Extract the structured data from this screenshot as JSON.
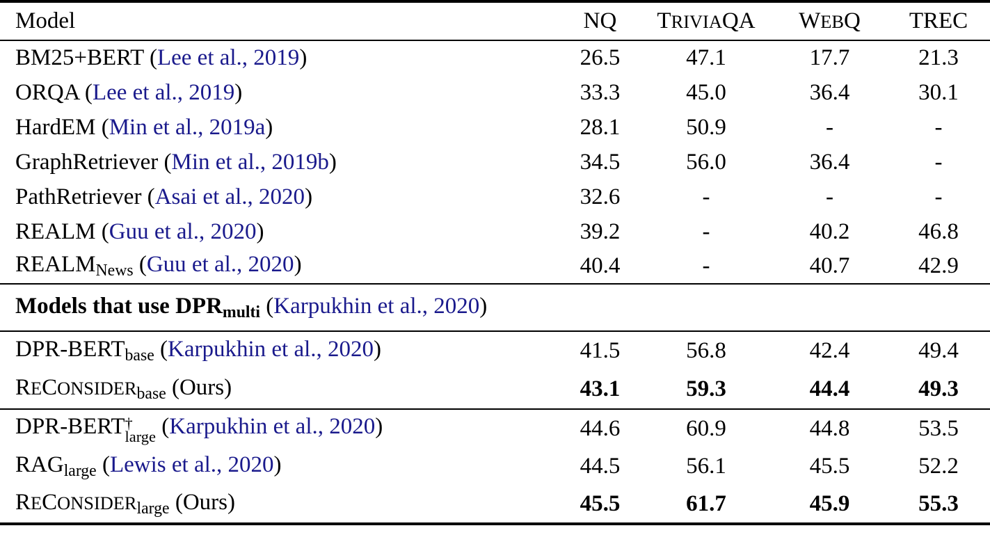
{
  "styles": {
    "citation_color": "#1a1a8c",
    "rule_color": "#000000",
    "text_color": "#000000",
    "background": "#ffffff"
  },
  "table": {
    "header": {
      "model_label": "Model",
      "metrics": [
        {
          "segments": [
            {
              "text": "NQ",
              "style": "plain"
            }
          ]
        },
        {
          "segments": [
            {
              "text": "T",
              "style": "plain"
            },
            {
              "text": "RIVIA",
              "style": "sc"
            },
            {
              "text": "QA",
              "style": "plain"
            }
          ]
        },
        {
          "segments": [
            {
              "text": "W",
              "style": "plain"
            },
            {
              "text": "EB",
              "style": "sc"
            },
            {
              "text": "Q",
              "style": "plain"
            }
          ]
        },
        {
          "segments": [
            {
              "text": "TREC",
              "style": "plain"
            }
          ]
        }
      ]
    },
    "sections": [
      {
        "name": "baselines",
        "rows": [
          {
            "model": [
              {
                "text": "BM25+BERT (",
                "style": "plain"
              },
              {
                "text": "Lee et al., 2019",
                "style": "cite"
              },
              {
                "text": ")",
                "style": "plain"
              }
            ],
            "values": [
              "26.5",
              "47.1",
              "17.7",
              "21.3"
            ],
            "bold": false
          },
          {
            "model": [
              {
                "text": "ORQA (",
                "style": "plain"
              },
              {
                "text": "Lee et al., 2019",
                "style": "cite"
              },
              {
                "text": ")",
                "style": "plain"
              }
            ],
            "values": [
              "33.3",
              "45.0",
              "36.4",
              "30.1"
            ],
            "bold": false
          },
          {
            "model": [
              {
                "text": "HardEM (",
                "style": "plain"
              },
              {
                "text": "Min et al., 2019a",
                "style": "cite"
              },
              {
                "text": ")",
                "style": "plain"
              }
            ],
            "values": [
              "28.1",
              "50.9",
              "-",
              "-"
            ],
            "bold": false
          },
          {
            "model": [
              {
                "text": "GraphRetriever (",
                "style": "plain"
              },
              {
                "text": "Min et al., 2019b",
                "style": "cite"
              },
              {
                "text": ")",
                "style": "plain"
              }
            ],
            "values": [
              "34.5",
              "56.0",
              "36.4",
              "-"
            ],
            "bold": false
          },
          {
            "model": [
              {
                "text": "PathRetriever (",
                "style": "plain"
              },
              {
                "text": "Asai et al., 2020",
                "style": "cite"
              },
              {
                "text": ")",
                "style": "plain"
              }
            ],
            "values": [
              "32.6",
              "-",
              "-",
              "-"
            ],
            "bold": false
          },
          {
            "model": [
              {
                "text": "REALM (",
                "style": "plain"
              },
              {
                "text": "Guu et al., 2020",
                "style": "cite"
              },
              {
                "text": ")",
                "style": "plain"
              }
            ],
            "values": [
              "39.2",
              "-",
              "40.2",
              "46.8"
            ],
            "bold": false
          },
          {
            "model": [
              {
                "text": "REALM",
                "style": "plain"
              },
              {
                "text": "News",
                "style": "sub"
              },
              {
                "text": " (",
                "style": "plain"
              },
              {
                "text": "Guu et al., 2020",
                "style": "cite"
              },
              {
                "text": ")",
                "style": "plain"
              }
            ],
            "values": [
              "40.4",
              "-",
              "40.7",
              "42.9"
            ],
            "bold": false
          }
        ]
      },
      {
        "name": "dpr-section-divider",
        "divider": true,
        "title_segments": [
          {
            "text": "Models that use DPR",
            "style": "bold"
          },
          {
            "text": "multi",
            "style": "bold-sub"
          },
          {
            "text": " (",
            "style": "plain"
          },
          {
            "text": "Karpukhin et al., 2020",
            "style": "cite"
          },
          {
            "text": ")",
            "style": "plain"
          }
        ]
      },
      {
        "name": "base-models",
        "rows": [
          {
            "model": [
              {
                "text": "DPR-BERT",
                "style": "plain"
              },
              {
                "text": "base",
                "style": "sub"
              },
              {
                "text": " (",
                "style": "plain"
              },
              {
                "text": "Karpukhin et al., 2020",
                "style": "cite"
              },
              {
                "text": ")",
                "style": "plain"
              }
            ],
            "values": [
              "41.5",
              "56.8",
              "42.4",
              "49.4"
            ],
            "bold": false
          },
          {
            "model": [
              {
                "text": "R",
                "style": "plain"
              },
              {
                "text": "E",
                "style": "sc"
              },
              {
                "text": "C",
                "style": "plain"
              },
              {
                "text": "ONSIDER",
                "style": "sc"
              },
              {
                "text": "base",
                "style": "sub"
              },
              {
                "text": " (Ours)",
                "style": "plain"
              }
            ],
            "values": [
              "43.1",
              "59.3",
              "44.4",
              "49.3"
            ],
            "bold": true
          }
        ]
      },
      {
        "name": "large-models",
        "rows": [
          {
            "model": [
              {
                "text": "DPR-BERT",
                "style": "plain"
              },
              {
                "style": "stack",
                "sup": "†",
                "sub": "large"
              },
              {
                "text": " (",
                "style": "plain"
              },
              {
                "text": "Karpukhin et al., 2020",
                "style": "cite"
              },
              {
                "text": ")",
                "style": "plain"
              }
            ],
            "values": [
              "44.6",
              "60.9",
              "44.8",
              "53.5"
            ],
            "bold": false
          },
          {
            "model": [
              {
                "text": "RAG",
                "style": "plain"
              },
              {
                "text": "large",
                "style": "sub"
              },
              {
                "text": " (",
                "style": "plain"
              },
              {
                "text": "Lewis et al., 2020",
                "style": "cite"
              },
              {
                "text": ")",
                "style": "plain"
              }
            ],
            "values": [
              "44.5",
              "56.1",
              "45.5",
              "52.2"
            ],
            "bold": false
          },
          {
            "model": [
              {
                "text": "R",
                "style": "plain"
              },
              {
                "text": "E",
                "style": "sc"
              },
              {
                "text": "C",
                "style": "plain"
              },
              {
                "text": "ONSIDER",
                "style": "sc"
              },
              {
                "text": "large",
                "style": "sub"
              },
              {
                "text": " (Ours)",
                "style": "plain"
              }
            ],
            "values": [
              "45.5",
              "61.7",
              "45.9",
              "55.3"
            ],
            "bold": true
          }
        ]
      }
    ]
  }
}
